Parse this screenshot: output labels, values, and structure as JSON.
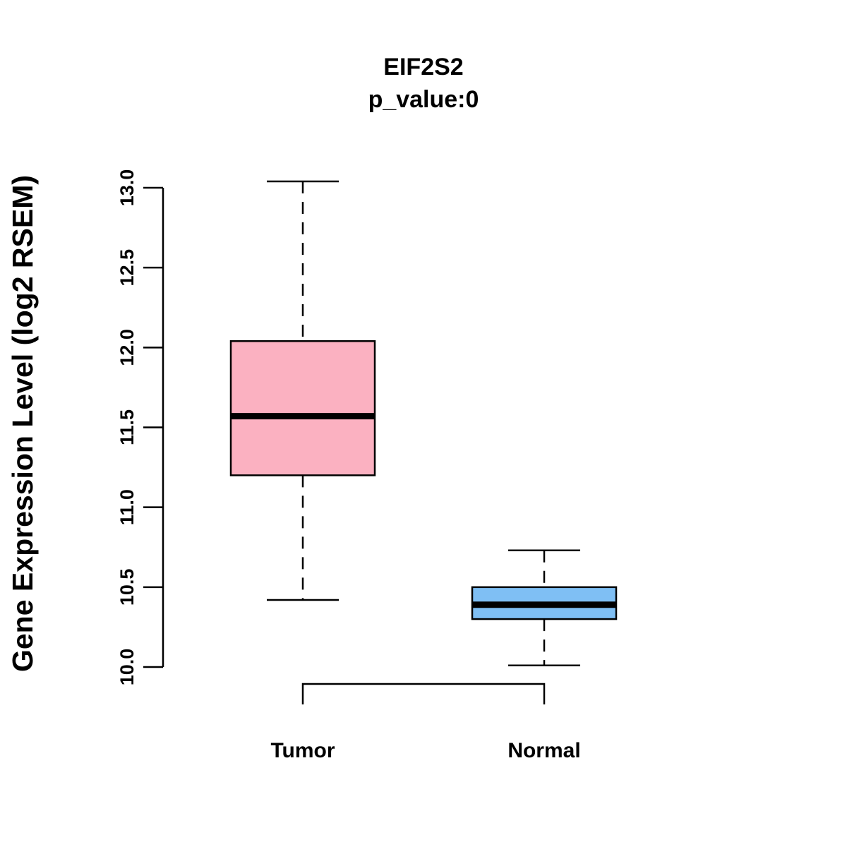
{
  "chart_data": {
    "type": "boxplot",
    "title": "EIF2S2",
    "subtitle": "p_value:0",
    "xlabel": "",
    "ylabel": "Gene Expression Level (log2 RSEM)",
    "ylim": [
      10.0,
      13.0
    ],
    "yticks": [
      "10.0",
      "10.5",
      "11.0",
      "11.5",
      "12.0",
      "12.5",
      "13.0"
    ],
    "grid": false,
    "categories": [
      "Tumor",
      "Normal"
    ],
    "boxes": [
      {
        "name": "Tumor",
        "whisker_low": 10.42,
        "q1": 11.2,
        "median": 11.57,
        "q3": 12.04,
        "whisker_high": 13.04,
        "color": "#fbb1c1"
      },
      {
        "name": "Normal",
        "whisker_low": 10.01,
        "q1": 10.3,
        "median": 10.39,
        "q3": 10.5,
        "whisker_high": 10.73,
        "color": "#7fbff4"
      }
    ],
    "comparison_bracket": [
      "Tumor",
      "Normal"
    ]
  }
}
